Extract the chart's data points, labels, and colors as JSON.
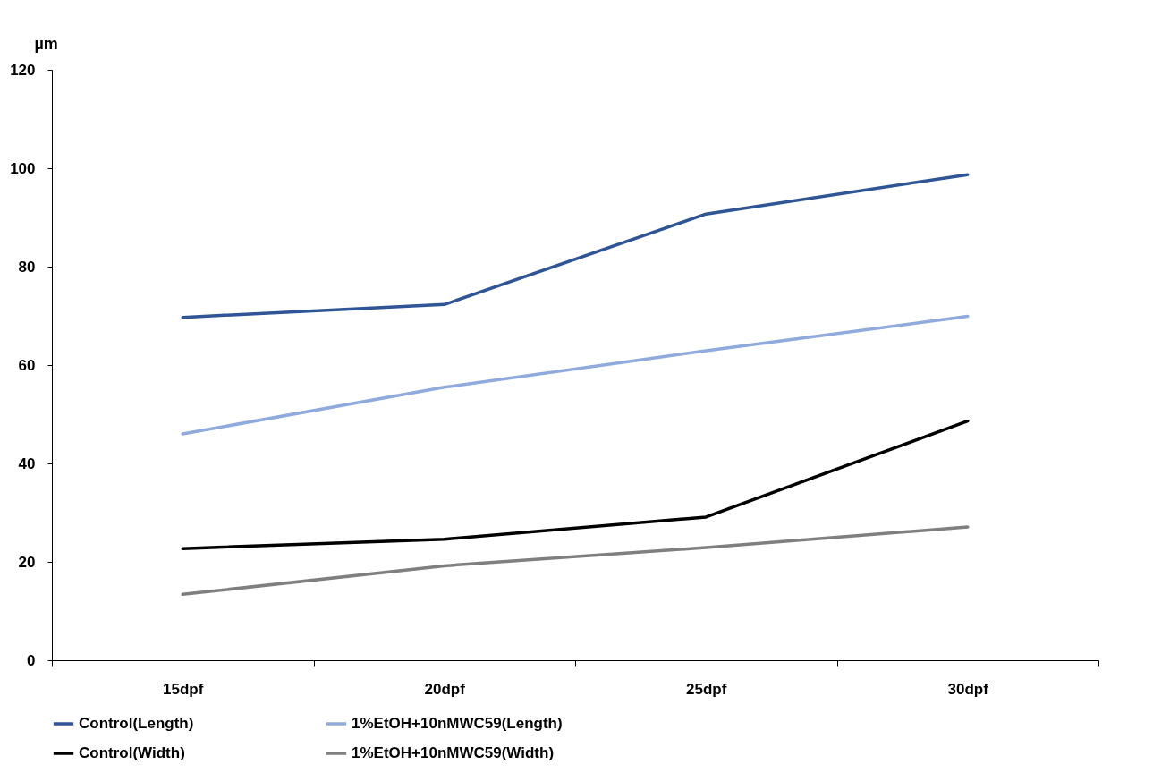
{
  "chart_data": {
    "type": "line",
    "ylabel": "µm",
    "categories": [
      "15dpf",
      "20dpf",
      "25dpf",
      "30dpf"
    ],
    "series": [
      {
        "name": "Control(Length)",
        "color": "#2f5597",
        "values": [
          69.7,
          72.3,
          90.7,
          98.7
        ]
      },
      {
        "name": "1%EtOH+10nMWC59(Length)",
        "color": "#8faadc",
        "values": [
          46.0,
          55.5,
          62.9,
          69.9
        ]
      },
      {
        "name": "Control(Width)",
        "color": "#000000",
        "values": [
          22.7,
          24.6,
          29.1,
          48.6
        ]
      },
      {
        "name": "1%EtOH+10nMWC59(Width)",
        "color": "#7f7f7f",
        "values": [
          13.4,
          19.2,
          22.9,
          27.1
        ]
      }
    ],
    "ylim": [
      0,
      120
    ],
    "yticks": [
      0,
      20,
      40,
      60,
      80,
      100,
      120
    ],
    "grid": false,
    "legend": "bottom",
    "marker": "none",
    "line_style": "solid"
  }
}
